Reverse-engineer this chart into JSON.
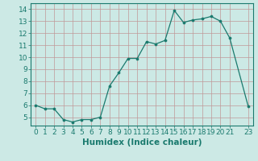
{
  "x": [
    0,
    1,
    2,
    3,
    4,
    5,
    6,
    7,
    8,
    9,
    10,
    11,
    12,
    13,
    14,
    15,
    16,
    17,
    18,
    19,
    20,
    21,
    23
  ],
  "y": [
    6.0,
    5.7,
    5.7,
    4.8,
    4.6,
    4.8,
    4.8,
    5.0,
    7.6,
    8.7,
    9.9,
    9.9,
    11.3,
    11.1,
    11.4,
    13.9,
    12.9,
    13.1,
    13.2,
    13.4,
    13.0,
    11.6,
    5.9
  ],
  "line_color": "#1a7a6e",
  "marker": "o",
  "marker_size": 2.2,
  "bg_color": "#cce9e5",
  "grid_color": "#c09898",
  "xlabel": "Humidex (Indice chaleur)",
  "xlim": [
    -0.5,
    23.5
  ],
  "ylim": [
    4.3,
    14.5
  ],
  "yticks": [
    5,
    6,
    7,
    8,
    9,
    10,
    11,
    12,
    13,
    14
  ],
  "xticks": [
    0,
    1,
    2,
    3,
    4,
    5,
    6,
    7,
    8,
    9,
    10,
    11,
    12,
    13,
    14,
    15,
    16,
    17,
    18,
    19,
    20,
    21,
    23
  ],
  "tick_font_size": 6.5,
  "label_font_size": 7.5
}
